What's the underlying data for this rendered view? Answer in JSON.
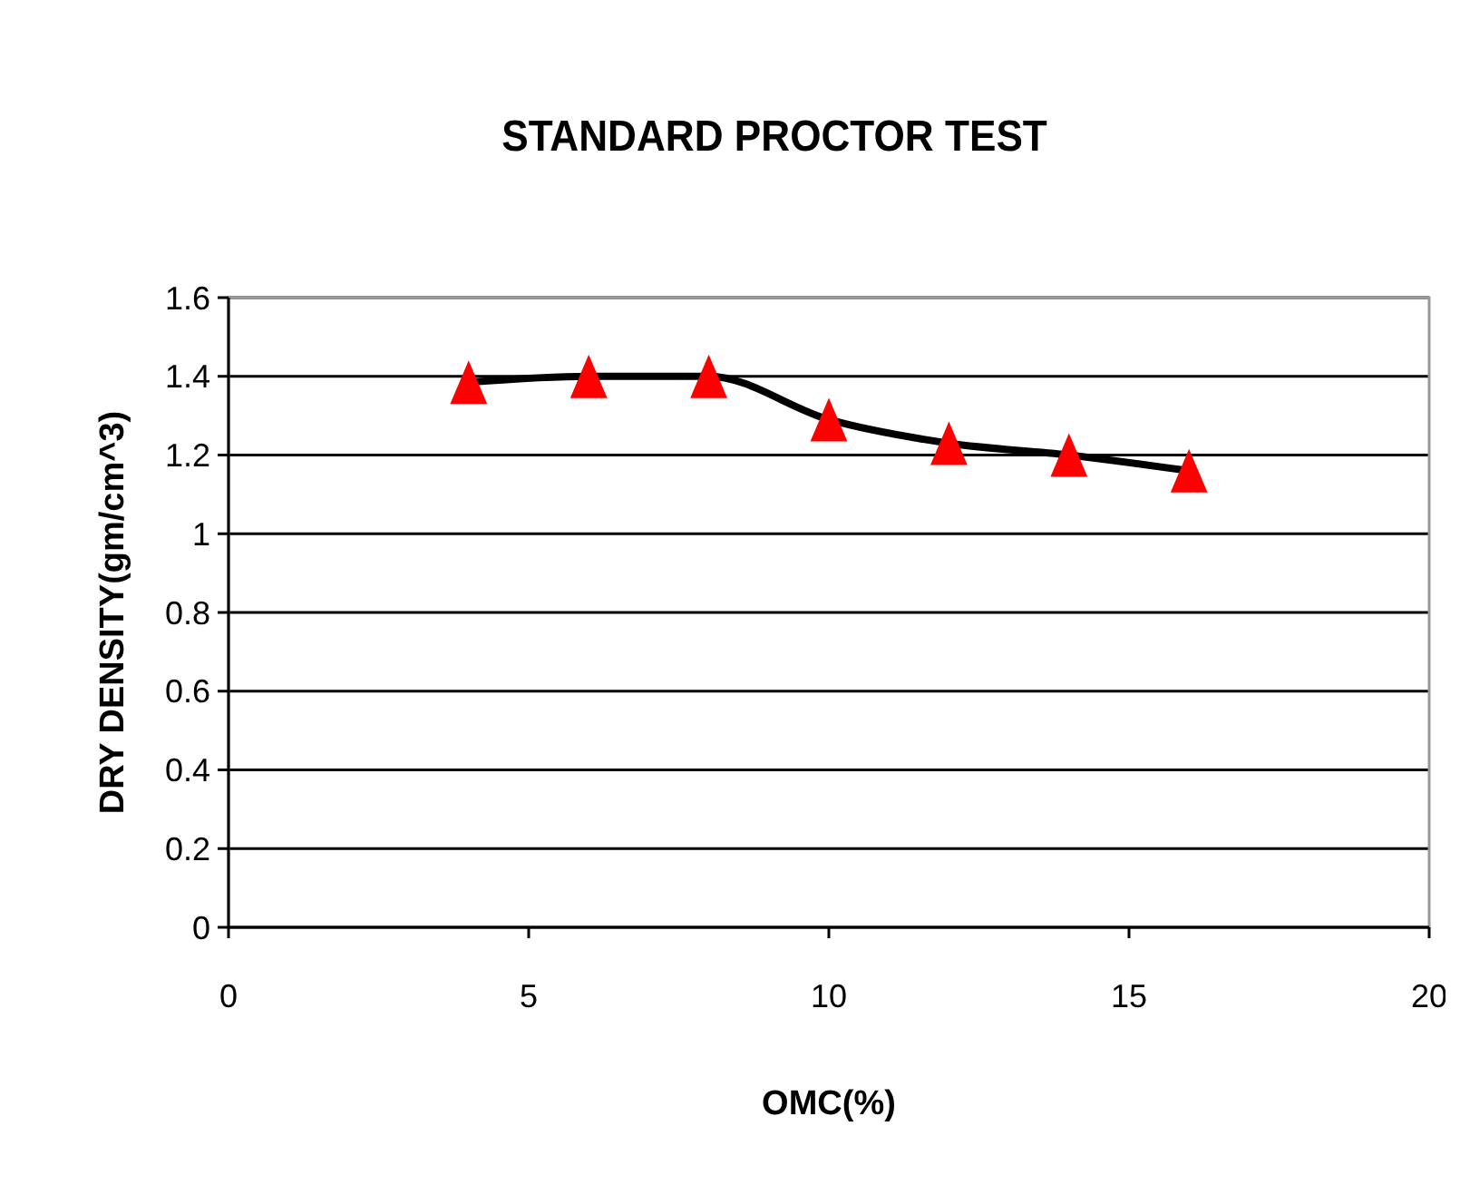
{
  "chart_data": {
    "type": "line",
    "title": "STANDARD PROCTOR TEST",
    "xlabel": "OMC(%)",
    "ylabel": "DRY DENSITY(gm/cm^3)",
    "x": [
      4,
      6,
      8,
      10,
      12,
      14,
      16
    ],
    "series": [
      {
        "color": "#000000",
        "marker": "none",
        "values": [
          1.385,
          1.4,
          1.4,
          1.29,
          1.23,
          1.2,
          1.16
        ]
      },
      {
        "type": "scatter",
        "color": "#ff0000",
        "marker": "triangle",
        "values": [
          1.385,
          1.4,
          1.4,
          1.29,
          1.23,
          1.2,
          1.16
        ]
      }
    ],
    "xlim": [
      0,
      20
    ],
    "xticks": [
      0,
      5,
      10,
      15,
      20
    ],
    "ylim": [
      0,
      1.6
    ],
    "yticks": [
      0,
      0.2,
      0.4,
      0.6,
      0.8,
      1,
      1.2,
      1.4,
      1.6
    ],
    "grid": "y"
  }
}
